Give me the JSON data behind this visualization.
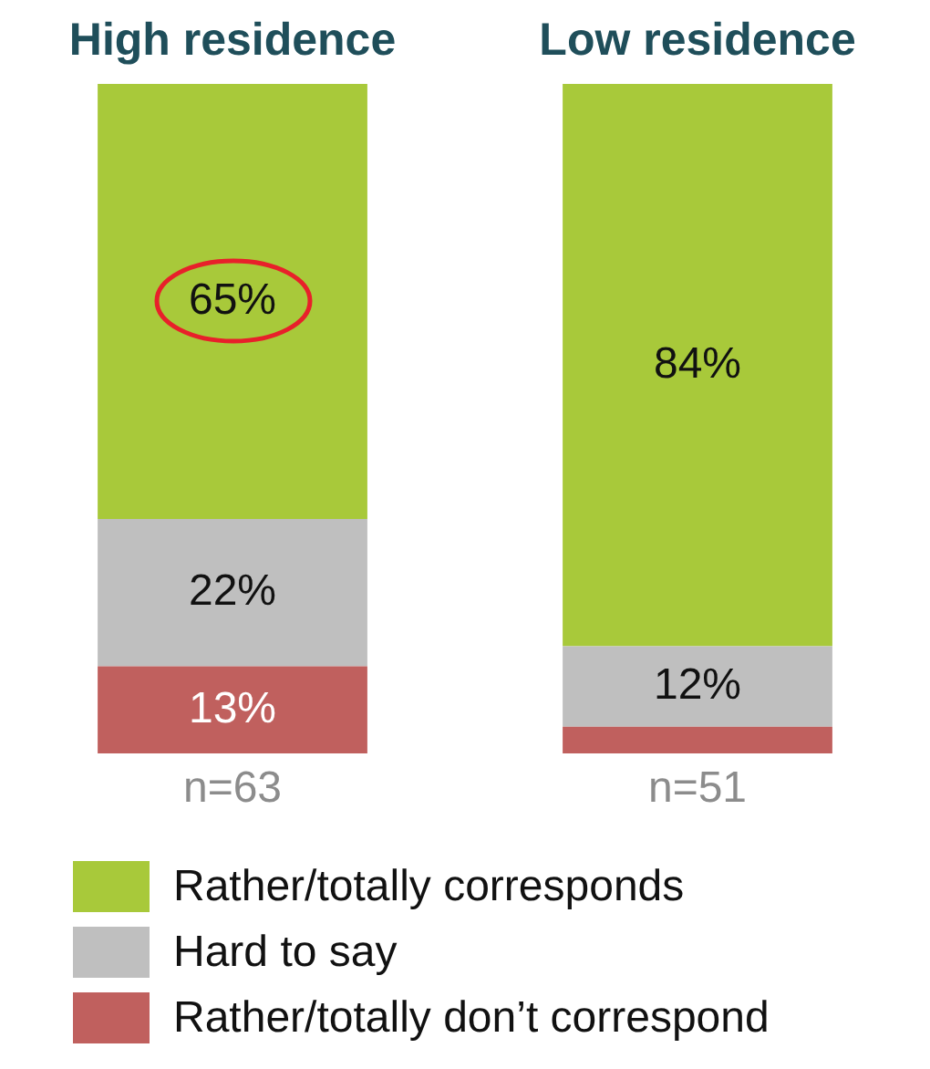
{
  "chart_data": {
    "type": "bar",
    "stacked": true,
    "categories": [
      "High residence",
      "Low residence"
    ],
    "ylim": [
      0,
      100
    ],
    "tick_labels": "x",
    "grid": false,
    "legend": "bottom",
    "series": [
      {
        "name": "Rather/totally don’t correspond",
        "color": "#c0605e",
        "values": [
          13,
          4
        ],
        "value_labels": [
          "13%",
          null
        ]
      },
      {
        "name": "Hard to say",
        "color": "#bfbfbf",
        "values": [
          22,
          12
        ],
        "value_labels": [
          "22%",
          "12%"
        ]
      },
      {
        "name": "Rather/totally corresponds",
        "color": "#a8c93a",
        "values": [
          65,
          84
        ],
        "value_labels": [
          "65%",
          "84%"
        ]
      }
    ],
    "annotations": [
      "n=63",
      "n=51"
    ]
  }
}
